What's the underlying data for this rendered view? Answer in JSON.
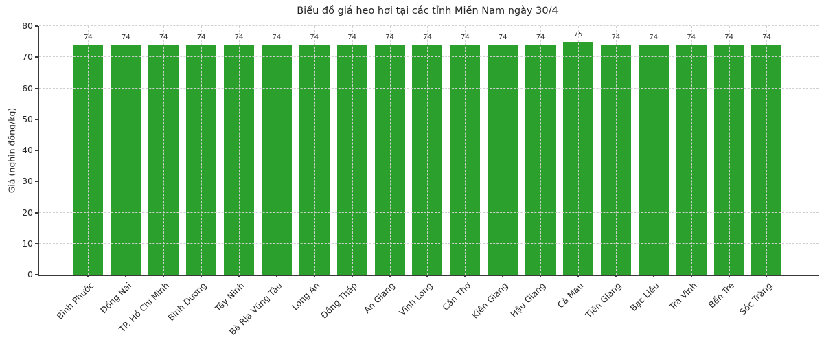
{
  "chart_data": {
    "type": "bar",
    "title": "Biểu đồ giá heo hơi tại các tỉnh Miền Nam ngày 30/4",
    "xlabel": "",
    "ylabel": "Giá (nghìn đồng/kg)",
    "categories": [
      "Bình Phước",
      "Đồng Nai",
      "TP. Hồ Chí Minh",
      "Bình Dương",
      "Tây Ninh",
      "Bà Rịa Vũng Tàu",
      "Long An",
      "Đồng Tháp",
      "An Giang",
      "Vĩnh Long",
      "Cần Thơ",
      "Kiên Giang",
      "Hậu Giang",
      "Cà Mau",
      "Tiền Giang",
      "Bạc Liêu",
      "Trà Vinh",
      "Bến Tre",
      "Sóc Trăng"
    ],
    "values": [
      74,
      74,
      74,
      74,
      74,
      74,
      74,
      74,
      74,
      74,
      74,
      74,
      74,
      75,
      74,
      74,
      74,
      74,
      74
    ],
    "ylim": [
      0,
      80
    ],
    "yticks": [
      0,
      10,
      20,
      30,
      40,
      50,
      60,
      70,
      80
    ],
    "grid": "dashed horizontal and vertical gridlines, drawn above bars",
    "legend": "none",
    "bar_color": "#2ca02c",
    "grid_color": "#d0d0d0",
    "axis_color": "#3a3a3a",
    "text_color": "#262626"
  }
}
